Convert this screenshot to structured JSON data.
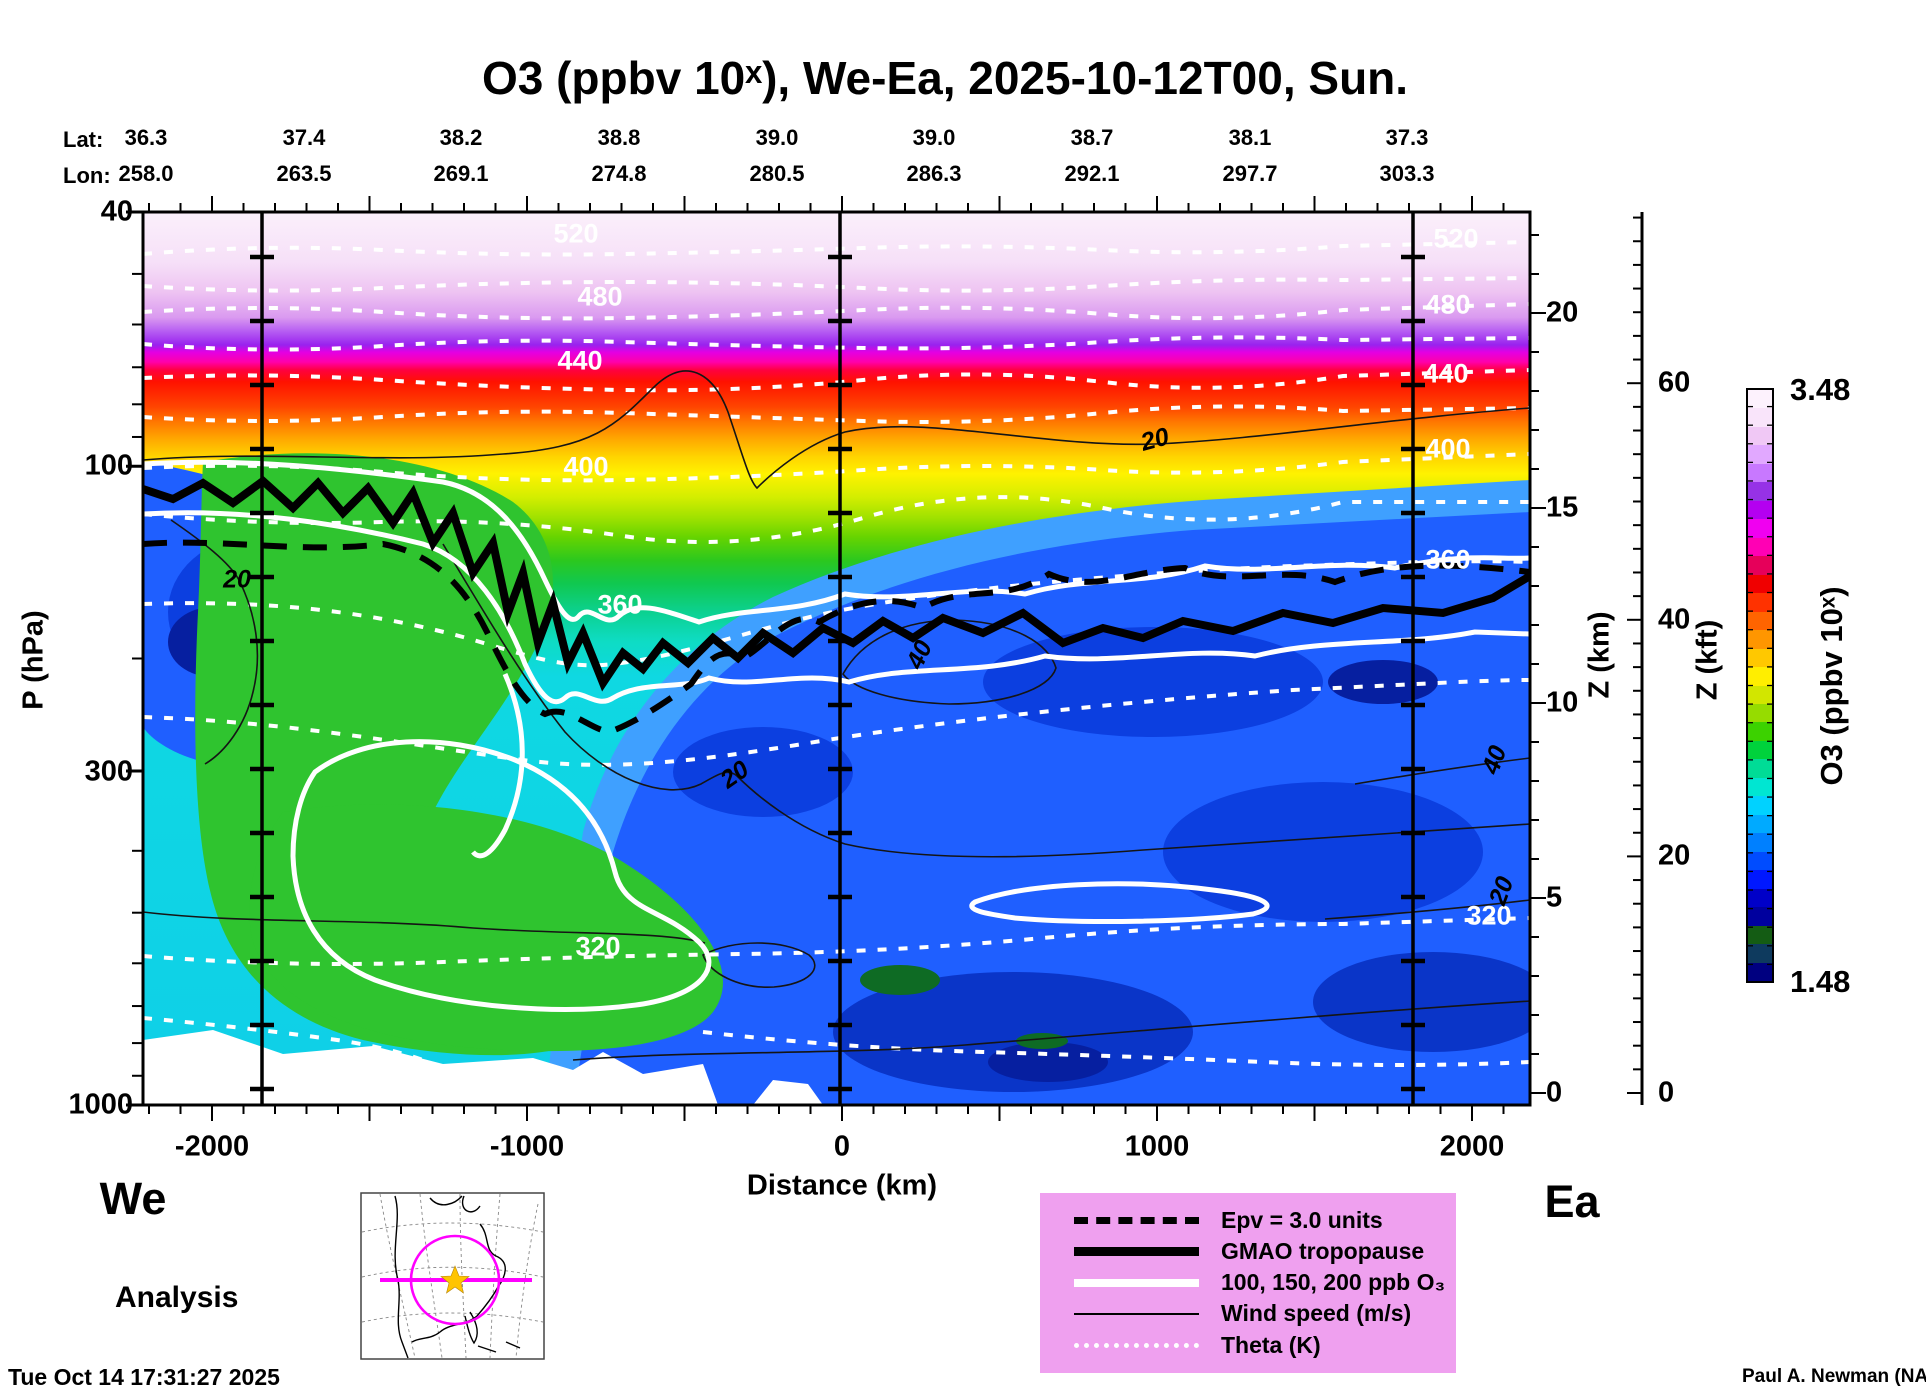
{
  "title": "O3 (ppbv 10ˣ), We-Ea, 2025-10-12T00, Sun.",
  "header": {
    "lat_label": "Lat:",
    "lon_label": "Lon:",
    "lat_values": [
      "36.3",
      "37.4",
      "38.2",
      "38.8",
      "39.0",
      "39.0",
      "38.7",
      "38.1",
      "37.3"
    ],
    "lon_values": [
      "258.0",
      "263.5",
      "269.1",
      "274.8",
      "280.5",
      "286.3",
      "292.1",
      "297.7",
      "303.3"
    ]
  },
  "axes": {
    "p": {
      "title": "P (hPa)",
      "ticks": [
        "40",
        "100",
        "300",
        "1000"
      ]
    },
    "x": {
      "title": "Distance (km)",
      "ticks": [
        "-2000",
        "-1000",
        "0",
        "1000",
        "2000"
      ]
    },
    "zkm": {
      "title": "Z (km)",
      "ticks": [
        "20",
        "15",
        "10",
        "5",
        "0"
      ]
    },
    "zkft": {
      "title": "Z (kft)",
      "ticks": [
        "60",
        "40",
        "20",
        "0"
      ]
    }
  },
  "colorbar": {
    "label": "O3 (ppbv 10ˣ)",
    "max": "3.48",
    "min": "1.48",
    "colors": [
      "#000080",
      "#0e3a5e",
      "#145c14",
      "#00009e",
      "#0000c8",
      "#0018ff",
      "#004cff",
      "#0080ff",
      "#00aaff",
      "#00d2ff",
      "#00e6d2",
      "#00dc96",
      "#00d23c",
      "#3cd200",
      "#96dc00",
      "#d2e600",
      "#ffee00",
      "#ffc800",
      "#ff9600",
      "#ff6400",
      "#ff3200",
      "#f00000",
      "#e6005a",
      "#ff00b4",
      "#f000f0",
      "#b400f0",
      "#9632e6",
      "#c878ff",
      "#e1a8ff",
      "#f0c8f5",
      "#f9e4fa",
      "#fdf2fd"
    ]
  },
  "legend": {
    "background": "#efa0ef",
    "items": [
      {
        "style": "dashed-black",
        "label": "Epv = 3.0 units"
      },
      {
        "style": "solid-black-thick",
        "label": "GMAO tropopause"
      },
      {
        "style": "solid-white-thick",
        "label": "100, 150, 200 ppb O₃"
      },
      {
        "style": "solid-black-thin",
        "label": "Wind speed (m/s)"
      },
      {
        "style": "dotted-white",
        "label": "Theta (K)"
      }
    ]
  },
  "annotations": {
    "west": "We",
    "east": "Ea",
    "analysis": "Analysis",
    "timestamp": "Tue Oct 14 17:31:27 2025",
    "credit": "Paul A. Newman (NASA"
  },
  "chart_data": {
    "type": "heatmap",
    "subtype": "filled-contour-vertical-cross-section",
    "title": "O3 (ppbv 10ˣ), We-Ea, 2025-10-12T00, Sun.",
    "x_axis": {
      "label": "Distance (km)",
      "min": -2200,
      "max": 2200,
      "ticks": [
        -2000,
        -1000,
        0,
        1000,
        2000
      ]
    },
    "y_axis": {
      "label": "P (hPa)",
      "scale": "log",
      "min": 40,
      "max": 1000,
      "ticks": [
        40,
        100,
        300,
        1000
      ]
    },
    "secondary_y_axes": [
      {
        "label": "Z (km)",
        "ticks": [
          0,
          5,
          10,
          15,
          20
        ]
      },
      {
        "label": "Z (kft)",
        "ticks": [
          0,
          20,
          40,
          60
        ]
      }
    ],
    "fill_field": {
      "name": "O3",
      "units": "ppbv 10ˣ",
      "min": 1.48,
      "max": 3.48
    },
    "overlay_contours": [
      {
        "field": "Theta (K)",
        "style": "white dotted",
        "interval": 20,
        "labeled_levels": [
          320,
          360,
          400,
          440,
          480,
          520
        ]
      },
      {
        "field": "Wind speed (m/s)",
        "style": "thin black solid",
        "labeled_levels": [
          20,
          40
        ]
      },
      {
        "field": "O3 (ppb)",
        "style": "thick white solid",
        "levels": [
          100,
          150,
          200
        ]
      },
      {
        "field": "Epv",
        "style": "thick black dashed",
        "level": "3.0 units"
      },
      {
        "field": "GMAO tropopause",
        "style": "thick black solid"
      }
    ],
    "contour_labels": {
      "theta": [
        "520",
        "480",
        "440",
        "400",
        "360",
        "320"
      ],
      "wind": [
        "20",
        "40"
      ]
    },
    "cross_section_points": {
      "lat": [
        36.3,
        37.4,
        38.2,
        38.8,
        39.0,
        39.0,
        38.7,
        38.1,
        37.3
      ],
      "lon": [
        258.0,
        263.5,
        269.1,
        274.8,
        280.5,
        286.3,
        292.1,
        297.7,
        303.3
      ]
    },
    "vertical_marker_lines_km": [
      -1850,
      0,
      1850
    ],
    "legend_position": "bottom-right",
    "grid": "off"
  }
}
